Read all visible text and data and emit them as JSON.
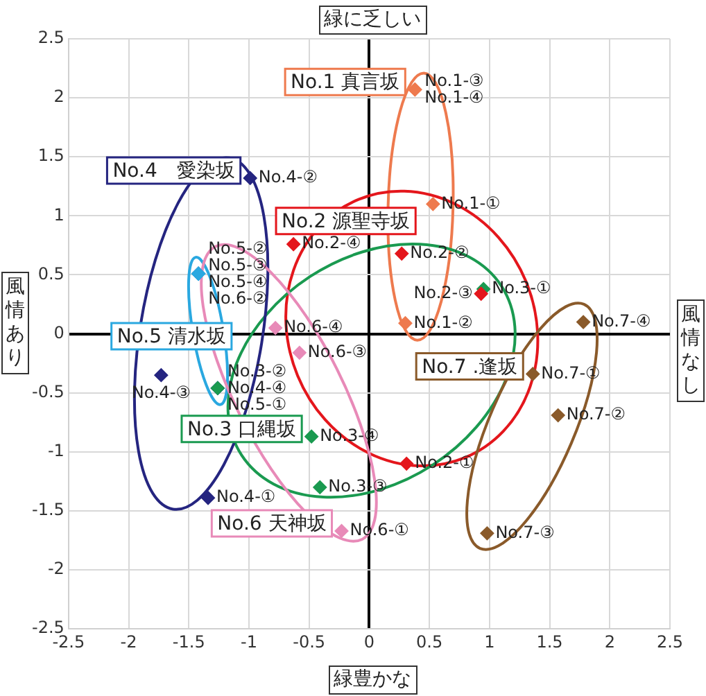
{
  "chart_data": {
    "type": "scatter",
    "xlabel": "緑豊かな",
    "x2label": "緑に乏しい",
    "ylabel": "風情あり",
    "y2label": "風情なし",
    "xlim": [
      -2.5,
      2.5
    ],
    "ylim": [
      -2.5,
      2.5
    ],
    "xticks": [
      -2.5,
      -2,
      -1.5,
      -1,
      -0.5,
      0,
      0.5,
      1,
      1.5,
      2,
      2.5
    ],
    "yticks": [
      -2.5,
      -2,
      -1.5,
      -1,
      -0.5,
      0,
      0.5,
      1,
      1.5,
      2,
      2.5
    ],
    "grid": true,
    "marker": "diamond",
    "series": [
      {
        "name": "No.1 真言坂",
        "color": "#ee7a4e",
        "x": [
          0.53,
          0.3,
          0.38,
          0.38
        ],
        "values": [
          1.1,
          0.09,
          2.07,
          2.07
        ],
        "value_labels": [
          "No.1-①",
          "No.1-②",
          "No.1-③",
          "No.1-④"
        ]
      },
      {
        "name": "No.2 源聖寺坂",
        "color": "#e4161c",
        "x": [
          0.31,
          0.27,
          0.93,
          -0.63
        ],
        "values": [
          -1.1,
          0.68,
          0.34,
          0.76
        ],
        "value_labels": [
          "No.2-①",
          "No.2-②",
          "No.2-③",
          "No.2-④"
        ]
      },
      {
        "name": "No.3 口縄坂",
        "color": "#1a9a50",
        "x": [
          0.95,
          -1.26,
          -0.41,
          -0.48
        ],
        "values": [
          0.38,
          -0.46,
          -1.3,
          -0.87
        ],
        "value_labels": [
          "No.3-①",
          "No.3-②",
          "No.3-③",
          "No.3-④"
        ]
      },
      {
        "name": "No.4　愛染坂",
        "color": "#252580",
        "x": [
          -1.34,
          -0.99,
          -1.73,
          -1.26
        ],
        "values": [
          -1.39,
          1.32,
          -0.35,
          -0.46
        ],
        "value_labels": [
          "No.4-①",
          "No.4-②",
          "No.4-③",
          "No.4-④"
        ]
      },
      {
        "name": "No.5 清水坂",
        "color": "#2aa8e0",
        "x": [
          -1.26,
          -1.42,
          -1.42,
          -1.42
        ],
        "values": [
          -0.46,
          0.51,
          0.51,
          0.51
        ],
        "value_labels": [
          "No.5-①",
          "No.5-②",
          "No.5-③",
          "No.5-④"
        ]
      },
      {
        "name": "No.6 天神坂",
        "color": "#e88ab8",
        "x": [
          -0.23,
          -1.42,
          -0.58,
          -0.78
        ],
        "values": [
          -1.67,
          0.51,
          -0.16,
          0.05
        ],
        "value_labels": [
          "No.6-①",
          "No.6-②",
          "No.6-③",
          "No.6-④"
        ]
      },
      {
        "name": "No.7 .逢坂",
        "color": "#8a5a2a",
        "x": [
          1.36,
          1.57,
          0.98,
          1.78
        ],
        "values": [
          -0.34,
          -0.69,
          -1.69,
          0.1
        ],
        "value_labels": [
          "No.7-①",
          "No.7-②",
          "No.7-③",
          "No.7-④"
        ]
      }
    ]
  }
}
